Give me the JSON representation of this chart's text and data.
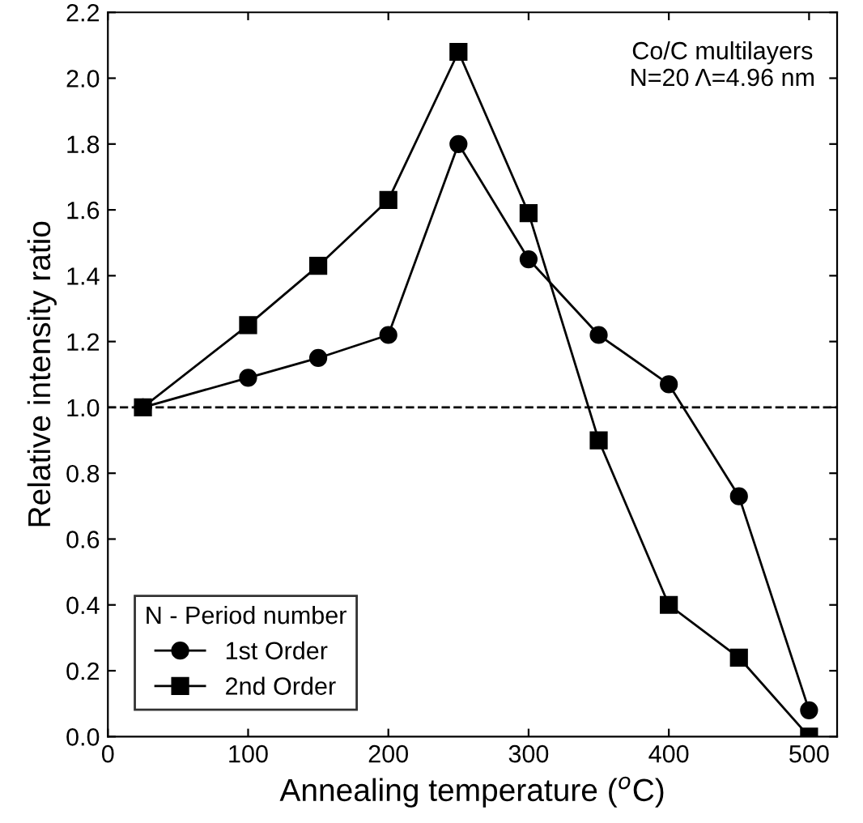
{
  "chart_data": {
    "type": "line",
    "xlabel": "Annealing temperature ($^{o}$C)",
    "ylabel": "Relative intensity ratio",
    "x": [
      25,
      100,
      150,
      200,
      250,
      300,
      350,
      400,
      450,
      500
    ],
    "series": [
      {
        "name": "1st Order",
        "color": "#000000",
        "marker": "circle",
        "values": [
          1.0,
          1.09,
          1.15,
          1.22,
          1.8,
          1.45,
          1.22,
          1.07,
          0.73,
          0.08
        ]
      },
      {
        "name": "2nd Order",
        "color": "#000000",
        "marker": "square",
        "values": [
          1.0,
          1.25,
          1.43,
          1.63,
          2.08,
          1.59,
          0.9,
          0.4,
          0.24,
          0.0
        ]
      }
    ],
    "xlim": [
      0,
      520
    ],
    "xticks": [
      0,
      100,
      200,
      300,
      400,
      500
    ],
    "ylim": [
      0,
      2.2
    ],
    "yticks": [
      {
        "value": 0,
        "label": "0.0"
      },
      {
        "value": 0.2,
        "label": "0.2"
      },
      {
        "value": 0.4,
        "label": "0.4"
      },
      {
        "value": 0.6,
        "label": "0.6"
      },
      {
        "value": 0.8,
        "label": "0.8"
      },
      {
        "value": 1.0,
        "label": "1.0"
      },
      {
        "value": 1.2,
        "label": "1.2"
      },
      {
        "value": 1.4,
        "label": "1.4"
      },
      {
        "value": 1.6,
        "label": "1.6"
      },
      {
        "value": 1.8,
        "label": "1.8"
      },
      {
        "value": 2.0,
        "label": "2.0"
      },
      {
        "value": 2.2,
        "label": "2.2"
      }
    ],
    "ref_lines": [
      {
        "axis": "y",
        "value": 1.0,
        "line_style": "dashed",
        "color": "#000000"
      }
    ],
    "legend": "bottom left",
    "legend_title": "N - Period number",
    "grid": false,
    "line_style": "solid",
    "annotations": [
      "Co/C multilayers\nN=20 Λ=4.96 nm"
    ]
  }
}
